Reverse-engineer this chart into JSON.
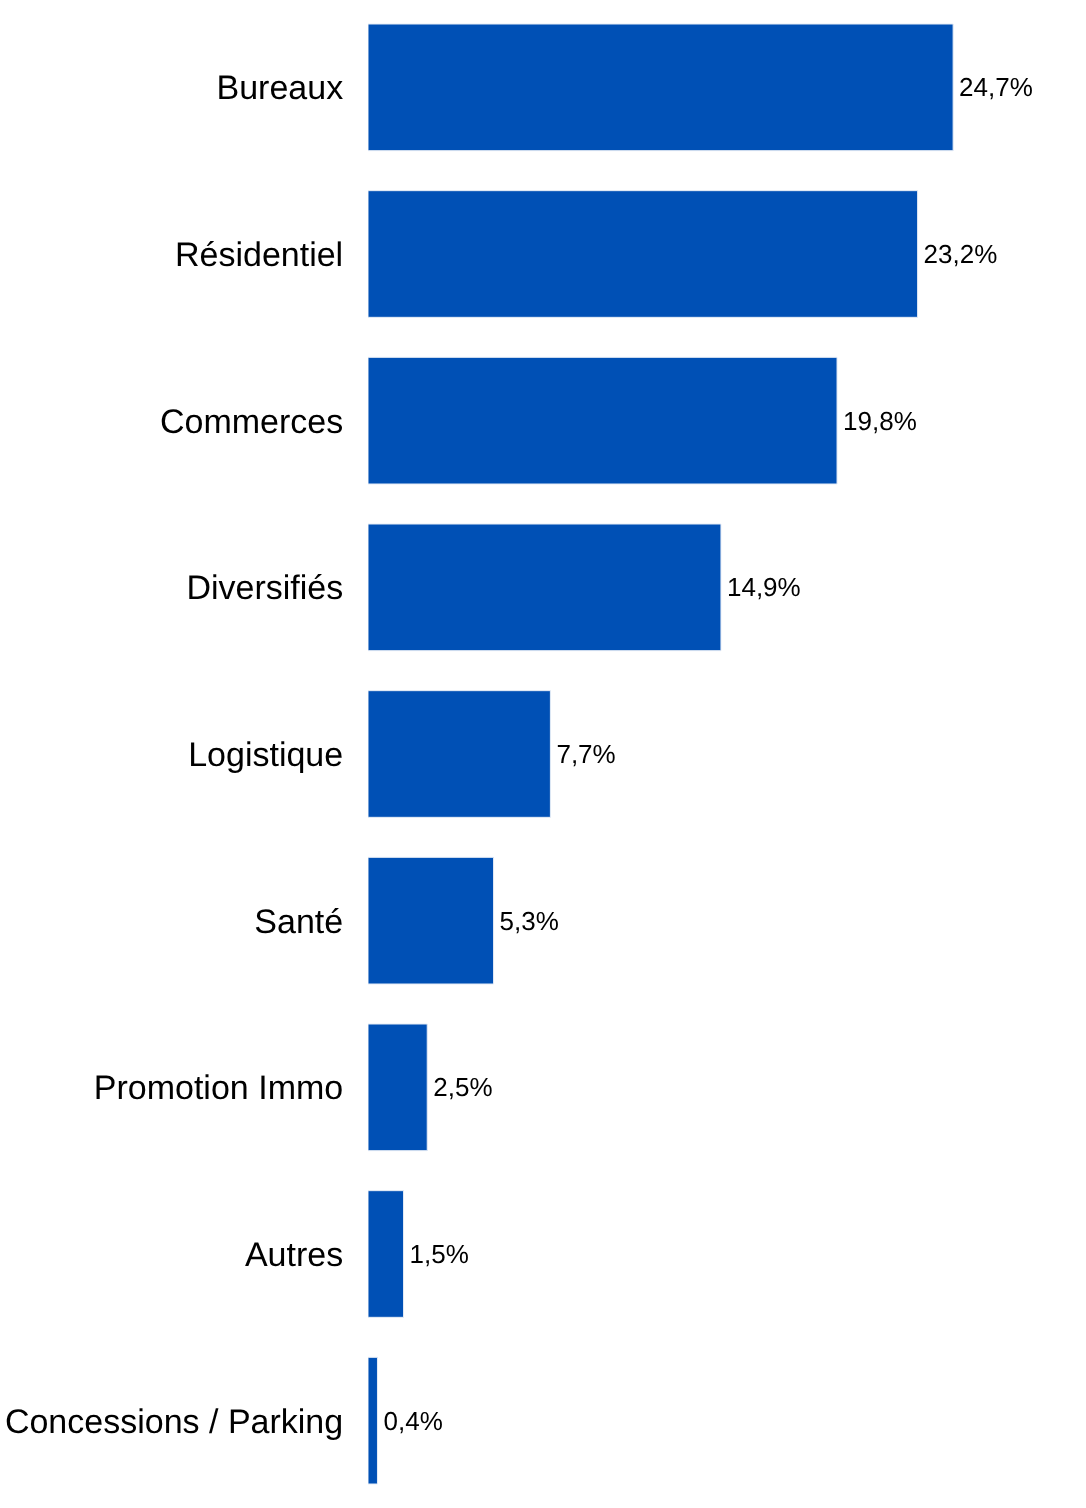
{
  "chart_data": {
    "type": "bar",
    "orientation": "horizontal",
    "categories": [
      "Bureaux",
      "Résidentiel",
      "Commerces",
      "Diversifiés",
      "Logistique",
      "Santé",
      "Promotion Immo",
      "Autres",
      "Concessions / Parking"
    ],
    "values": [
      24.7,
      23.2,
      19.8,
      14.9,
      7.7,
      5.3,
      2.5,
      1.5,
      0.4
    ],
    "value_labels": [
      "24,7%",
      "23,2%",
      "19,8%",
      "14,9%",
      "7,7%",
      "5,3%",
      "2,5%",
      "1,5%",
      "0,4%"
    ],
    "color": "#0050b5"
  }
}
